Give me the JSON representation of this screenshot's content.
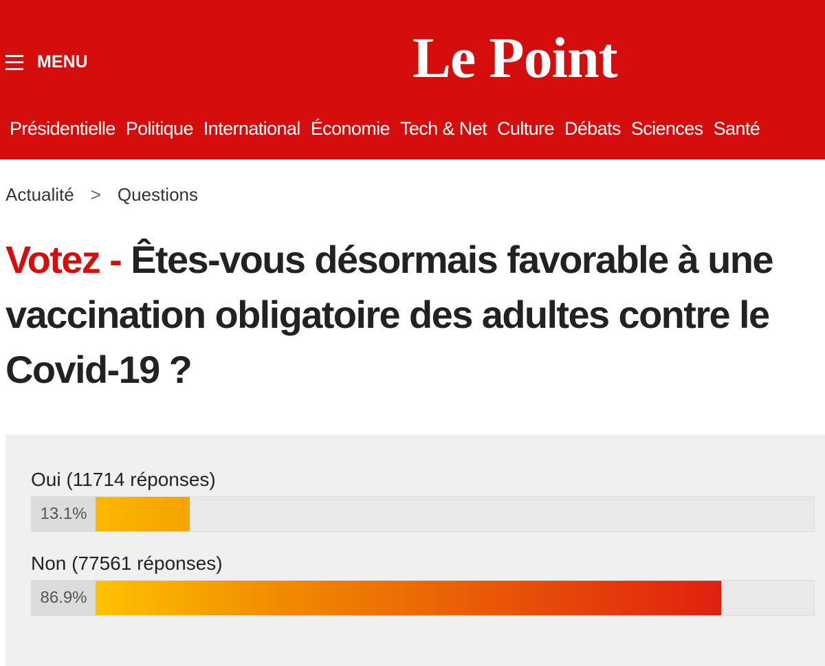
{
  "header": {
    "menu": "MENU",
    "logo": "Le Point",
    "nav": [
      "Présidentielle",
      "Politique",
      "International",
      "Économie",
      "Tech & Net",
      "Culture",
      "Débats",
      "Sciences",
      "Santé"
    ]
  },
  "breadcrumb": [
    "Actualité",
    "Questions"
  ],
  "title": {
    "prefix": "Votez -",
    "question": "Êtes-vous désormais favorable à une vaccination obligatoire des adultes contre le Covid-19 ?"
  },
  "poll": {
    "options": [
      {
        "label": "Oui (11714 réponses)",
        "percent": 13.1,
        "percent_label": "13.1%"
      },
      {
        "label": "Non (77561 réponses)",
        "percent": 86.9,
        "percent_label": "86.9%"
      }
    ]
  }
}
